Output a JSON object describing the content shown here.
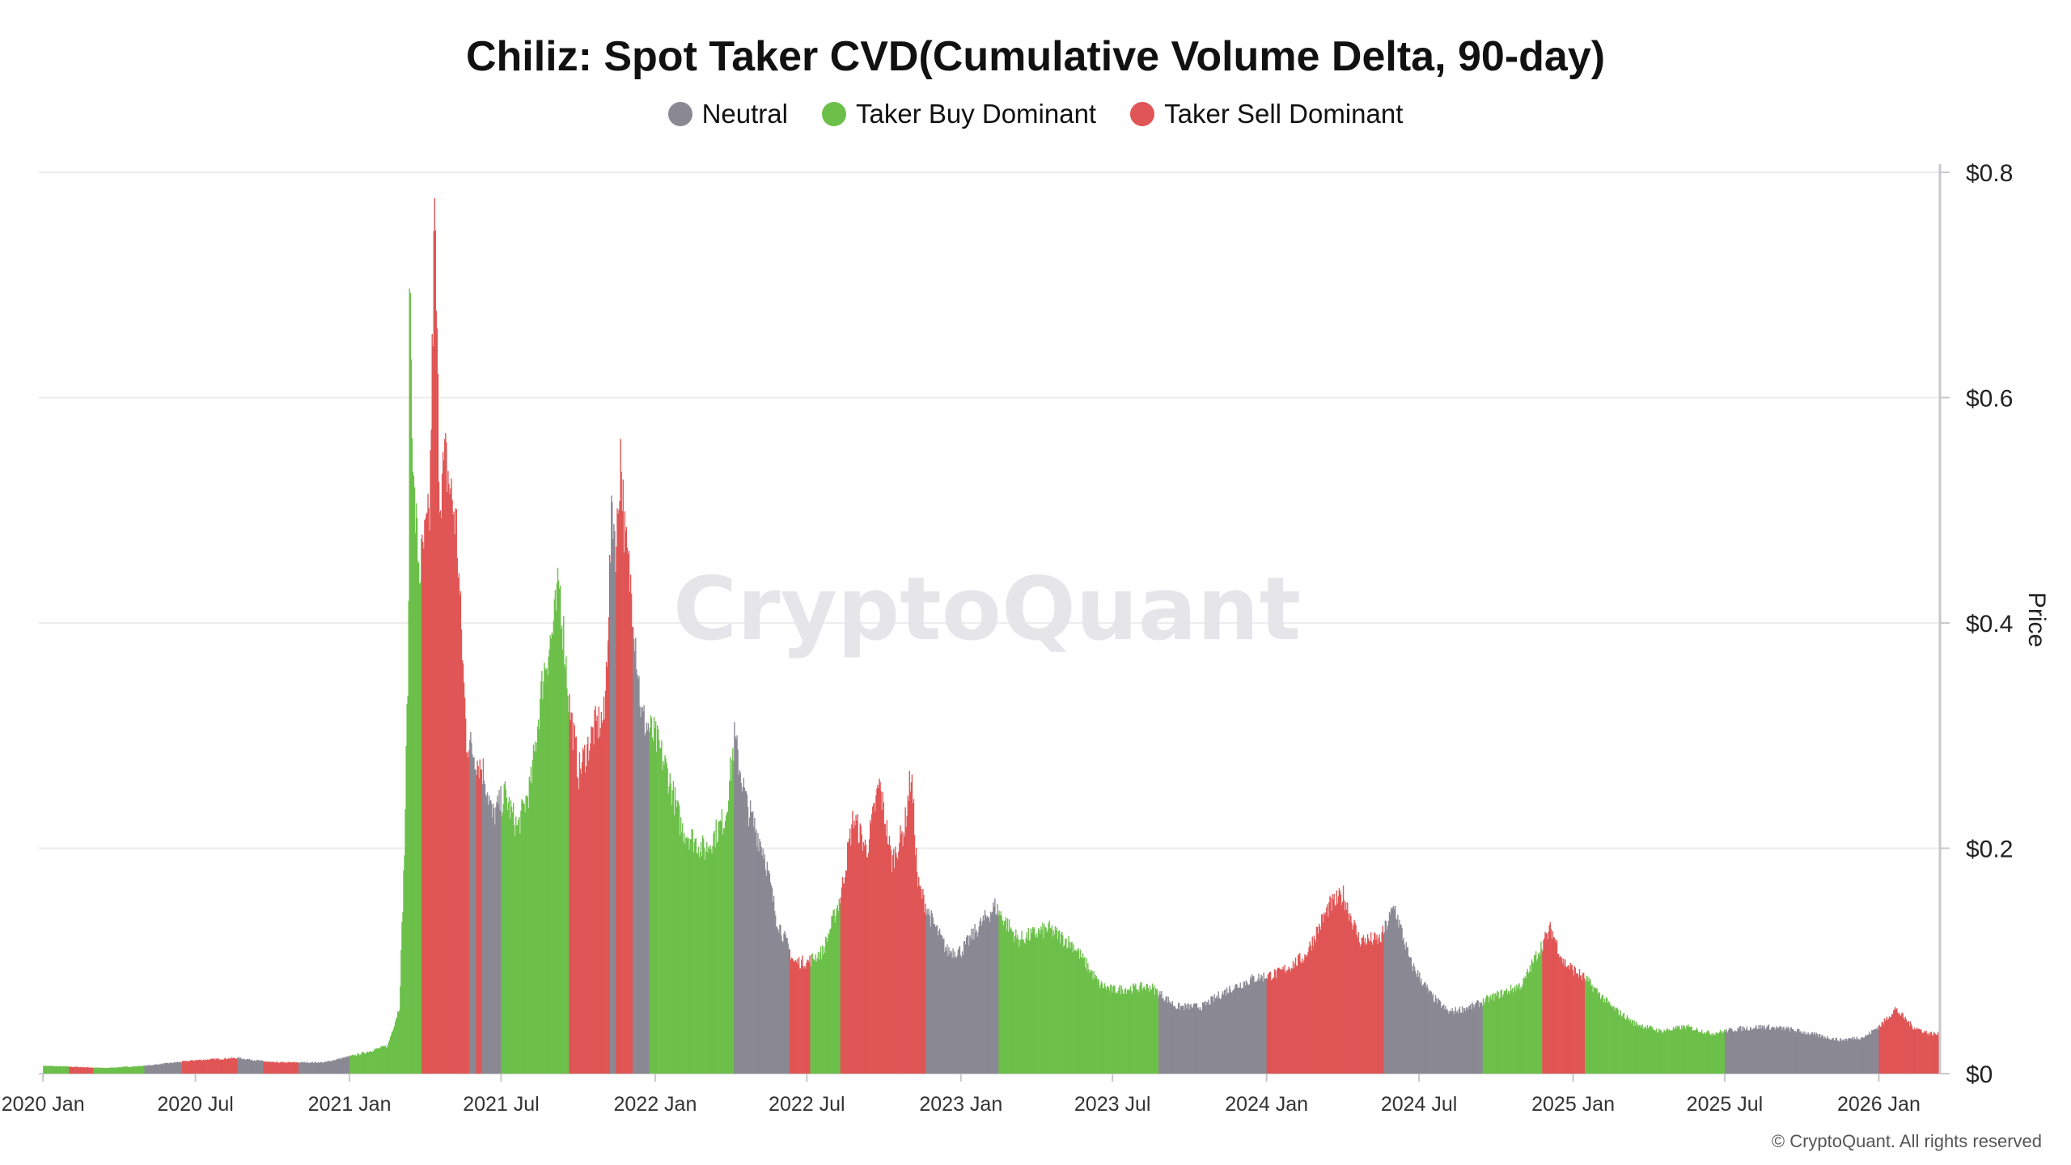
{
  "chart_data": {
    "type": "bar",
    "title": "Chiliz: Spot Taker CVD(Cumulative Volume Delta, 90-day)",
    "ylabel": "Price",
    "ylim": [
      0,
      0.8
    ],
    "yticks": [
      "$0",
      "$0.2",
      "$0.4",
      "$0.6",
      "$0.8"
    ],
    "ytick_values": [
      0,
      0.2,
      0.4,
      0.6,
      0.8
    ],
    "xticks": [
      "2020 Jan",
      "2020 Jul",
      "2021 Jan",
      "2021 Jul",
      "2022 Jan",
      "2022 Jul",
      "2023 Jan",
      "2023 Jul",
      "2024 Jan",
      "2024 Jul",
      "2025 Jan",
      "2025 Jul",
      "2026 Jan"
    ],
    "xtick_dates": [
      "2020-01-01",
      "2020-07-01",
      "2021-01-01",
      "2021-07-01",
      "2022-01-01",
      "2022-07-01",
      "2023-01-01",
      "2023-07-01",
      "2024-01-01",
      "2024-07-01",
      "2025-01-01",
      "2025-07-01",
      "2026-01-01"
    ],
    "x_range": [
      "2019-12-27",
      "2026-03-15"
    ],
    "legend_position": "top-center",
    "grid": "horizontal",
    "colors": {
      "neutral": "#8a8893",
      "buy": "#6cc04a",
      "sell": "#e05555"
    },
    "series": [
      {
        "name": "Neutral",
        "key": "neutral",
        "color": "#8a8893"
      },
      {
        "name": "Taker Buy Dominant",
        "key": "buy",
        "color": "#6cc04a"
      },
      {
        "name": "Taker Sell Dominant",
        "key": "sell",
        "color": "#e05555"
      }
    ],
    "price_points": [
      [
        "2020-01-01",
        0.007
      ],
      [
        "2020-03-15",
        0.005
      ],
      [
        "2020-05-01",
        0.007
      ],
      [
        "2020-07-01",
        0.012
      ],
      [
        "2020-08-20",
        0.014
      ],
      [
        "2020-10-01",
        0.01
      ],
      [
        "2020-12-01",
        0.01
      ],
      [
        "2021-01-15",
        0.018
      ],
      [
        "2021-02-15",
        0.025
      ],
      [
        "2021-03-01",
        0.06
      ],
      [
        "2021-03-07",
        0.2
      ],
      [
        "2021-03-12",
        0.4
      ],
      [
        "2021-03-13",
        0.73
      ],
      [
        "2021-03-18",
        0.52
      ],
      [
        "2021-03-25",
        0.45
      ],
      [
        "2021-04-06",
        0.5
      ],
      [
        "2021-04-12",
        0.77
      ],
      [
        "2021-04-18",
        0.52
      ],
      [
        "2021-04-25",
        0.55
      ],
      [
        "2021-05-08",
        0.49
      ],
      [
        "2021-05-20",
        0.3
      ],
      [
        "2021-06-10",
        0.27
      ],
      [
        "2021-06-20",
        0.23
      ],
      [
        "2021-07-05",
        0.25
      ],
      [
        "2021-07-20",
        0.22
      ],
      [
        "2021-08-05",
        0.26
      ],
      [
        "2021-08-20",
        0.36
      ],
      [
        "2021-09-01",
        0.4
      ],
      [
        "2021-09-08",
        0.44
      ],
      [
        "2021-09-20",
        0.33
      ],
      [
        "2021-10-01",
        0.27
      ],
      [
        "2021-10-20",
        0.31
      ],
      [
        "2021-11-01",
        0.32
      ],
      [
        "2021-11-10",
        0.51
      ],
      [
        "2021-11-15",
        0.47
      ],
      [
        "2021-11-20",
        0.56
      ],
      [
        "2021-11-25",
        0.48
      ],
      [
        "2021-12-05",
        0.42
      ],
      [
        "2021-12-15",
        0.32
      ],
      [
        "2022-01-01",
        0.3
      ],
      [
        "2022-01-15",
        0.27
      ],
      [
        "2022-02-01",
        0.22
      ],
      [
        "2022-03-01",
        0.2
      ],
      [
        "2022-03-25",
        0.23
      ],
      [
        "2022-04-05",
        0.3
      ],
      [
        "2022-04-20",
        0.24
      ],
      [
        "2022-05-10",
        0.2
      ],
      [
        "2022-05-25",
        0.14
      ],
      [
        "2022-06-15",
        0.1
      ],
      [
        "2022-07-01",
        0.1
      ],
      [
        "2022-07-20",
        0.11
      ],
      [
        "2022-08-10",
        0.16
      ],
      [
        "2022-08-25",
        0.23
      ],
      [
        "2022-09-10",
        0.2
      ],
      [
        "2022-09-25",
        0.26
      ],
      [
        "2022-10-10",
        0.19
      ],
      [
        "2022-10-25",
        0.22
      ],
      [
        "2022-11-02",
        0.27
      ],
      [
        "2022-11-10",
        0.17
      ],
      [
        "2022-11-25",
        0.14
      ],
      [
        "2022-12-15",
        0.11
      ],
      [
        "2023-01-01",
        0.11
      ],
      [
        "2023-01-20",
        0.13
      ],
      [
        "2023-02-10",
        0.15
      ],
      [
        "2023-03-10",
        0.12
      ],
      [
        "2023-04-15",
        0.13
      ],
      [
        "2023-05-15",
        0.115
      ],
      [
        "2023-06-15",
        0.08
      ],
      [
        "2023-07-01",
        0.075
      ],
      [
        "2023-08-15",
        0.078
      ],
      [
        "2023-09-15",
        0.06
      ],
      [
        "2023-10-15",
        0.06
      ],
      [
        "2023-11-15",
        0.075
      ],
      [
        "2023-12-15",
        0.085
      ],
      [
        "2024-01-15",
        0.09
      ],
      [
        "2024-02-15",
        0.105
      ],
      [
        "2024-03-15",
        0.15
      ],
      [
        "2024-04-01",
        0.16
      ],
      [
        "2024-04-20",
        0.12
      ],
      [
        "2024-05-15",
        0.12
      ],
      [
        "2024-06-01",
        0.15
      ],
      [
        "2024-06-20",
        0.1
      ],
      [
        "2024-07-15",
        0.07
      ],
      [
        "2024-08-05",
        0.055
      ],
      [
        "2024-09-01",
        0.06
      ],
      [
        "2024-10-01",
        0.07
      ],
      [
        "2024-11-01",
        0.08
      ],
      [
        "2024-11-20",
        0.11
      ],
      [
        "2024-12-05",
        0.13
      ],
      [
        "2024-12-20",
        0.1
      ],
      [
        "2025-01-15",
        0.085
      ],
      [
        "2025-02-15",
        0.06
      ],
      [
        "2025-03-15",
        0.045
      ],
      [
        "2025-04-15",
        0.038
      ],
      [
        "2025-05-15",
        0.042
      ],
      [
        "2025-06-15",
        0.036
      ],
      [
        "2025-07-15",
        0.04
      ],
      [
        "2025-08-15",
        0.042
      ],
      [
        "2025-09-15",
        0.04
      ],
      [
        "2025-10-15",
        0.035
      ],
      [
        "2025-11-15",
        0.03
      ],
      [
        "2025-12-15",
        0.033
      ],
      [
        "2026-01-05",
        0.045
      ],
      [
        "2026-01-20",
        0.058
      ],
      [
        "2026-02-10",
        0.042
      ],
      [
        "2026-03-01",
        0.036
      ],
      [
        "2026-03-15",
        0.035
      ]
    ],
    "regime_segments": [
      [
        "2020-01-01",
        "2020-02-01",
        "buy"
      ],
      [
        "2020-02-01",
        "2020-03-01",
        "sell"
      ],
      [
        "2020-03-01",
        "2020-05-01",
        "buy"
      ],
      [
        "2020-05-01",
        "2020-06-15",
        "neutral"
      ],
      [
        "2020-06-15",
        "2020-08-20",
        "sell"
      ],
      [
        "2020-08-20",
        "2020-09-20",
        "neutral"
      ],
      [
        "2020-09-20",
        "2020-11-01",
        "sell"
      ],
      [
        "2020-11-01",
        "2021-01-01",
        "neutral"
      ],
      [
        "2021-01-01",
        "2021-03-28",
        "buy"
      ],
      [
        "2021-03-28",
        "2021-05-24",
        "sell"
      ],
      [
        "2021-05-24",
        "2021-06-01",
        "neutral"
      ],
      [
        "2021-06-01",
        "2021-06-08",
        "sell"
      ],
      [
        "2021-06-08",
        "2021-07-01",
        "neutral"
      ],
      [
        "2021-07-01",
        "2021-09-20",
        "buy"
      ],
      [
        "2021-09-20",
        "2021-11-08",
        "sell"
      ],
      [
        "2021-11-08",
        "2021-11-15",
        "neutral"
      ],
      [
        "2021-11-15",
        "2021-12-05",
        "sell"
      ],
      [
        "2021-12-05",
        "2021-12-25",
        "neutral"
      ],
      [
        "2021-12-25",
        "2022-04-05",
        "buy"
      ],
      [
        "2022-04-05",
        "2022-06-10",
        "neutral"
      ],
      [
        "2022-06-10",
        "2022-07-05",
        "sell"
      ],
      [
        "2022-07-05",
        "2022-08-10",
        "buy"
      ],
      [
        "2022-08-10",
        "2022-11-20",
        "sell"
      ],
      [
        "2022-11-20",
        "2023-02-15",
        "neutral"
      ],
      [
        "2023-02-15",
        "2023-08-25",
        "buy"
      ],
      [
        "2023-08-25",
        "2024-01-01",
        "neutral"
      ],
      [
        "2024-01-01",
        "2024-05-20",
        "sell"
      ],
      [
        "2024-05-20",
        "2024-09-15",
        "neutral"
      ],
      [
        "2024-09-15",
        "2024-11-25",
        "buy"
      ],
      [
        "2024-11-25",
        "2025-01-15",
        "sell"
      ],
      [
        "2025-01-15",
        "2025-07-01",
        "buy"
      ],
      [
        "2025-07-01",
        "2026-01-01",
        "neutral"
      ],
      [
        "2026-01-01",
        "2026-03-15",
        "sell"
      ]
    ]
  },
  "watermark": "CryptoQuant",
  "copyright": "© CryptoQuant. All rights reserved"
}
